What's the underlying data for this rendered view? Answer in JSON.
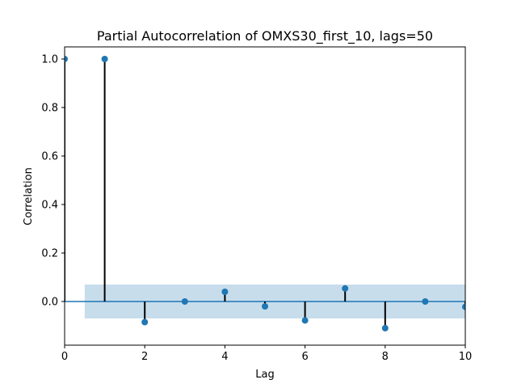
{
  "chart_data": {
    "type": "stem",
    "title": "Partial Autocorrelation of OMXS30_first_10, lags=50",
    "xlabel": "Lag",
    "ylabel": "Correlation",
    "xlim": [
      0,
      10
    ],
    "ylim": [
      -0.18,
      1.05
    ],
    "x_ticks": [
      0,
      2,
      4,
      6,
      8,
      10
    ],
    "y_ticks": [
      0.0,
      0.2,
      0.4,
      0.6,
      0.8,
      1.0
    ],
    "x_tick_labels": [
      "0",
      "2",
      "4",
      "6",
      "8",
      "10"
    ],
    "y_tick_labels": [
      "0.0",
      "0.2",
      "0.4",
      "0.6",
      "0.8",
      "1.0"
    ],
    "lags": [
      0,
      1,
      2,
      3,
      4,
      5,
      6,
      7,
      8,
      9,
      10
    ],
    "values": [
      1.0,
      1.0,
      -0.085,
      0.0,
      0.04,
      -0.02,
      -0.078,
      0.054,
      -0.11,
      0.0,
      -0.022
    ],
    "confidence_band": {
      "lag_start": 0.5,
      "lag_end": 10,
      "lower": -0.07,
      "upper": 0.07
    },
    "grid": false,
    "colors": {
      "marker": "#1f77b4",
      "stem": "#000000",
      "zero_line": "#1f77b4",
      "band": "#1f77b4"
    }
  }
}
